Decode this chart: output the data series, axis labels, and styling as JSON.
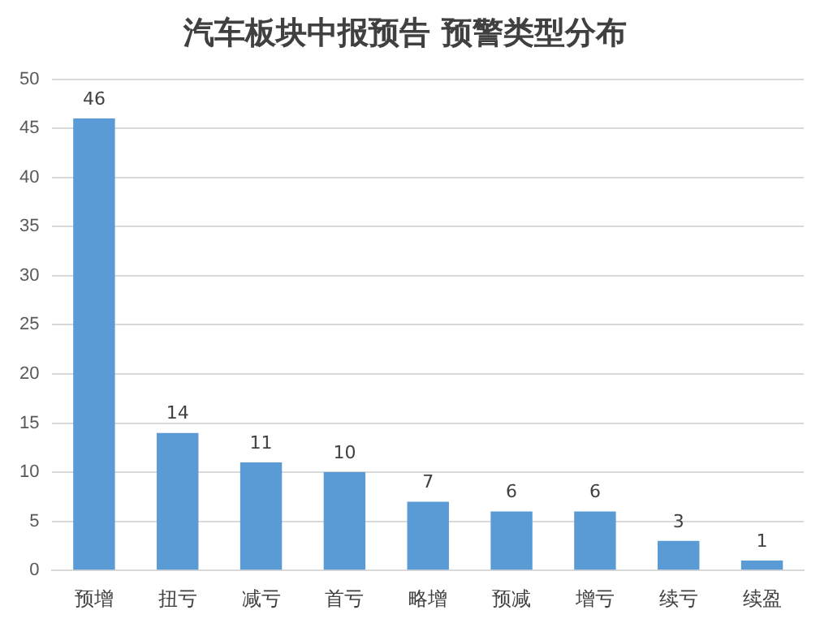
{
  "chart_data": {
    "type": "bar",
    "title": "汽车板块中报预告 预警类型分布",
    "categories": [
      "预增",
      "扭亏",
      "减亏",
      "首亏",
      "略增",
      "预减",
      "增亏",
      "续亏",
      "续盈"
    ],
    "values": [
      46,
      14,
      11,
      10,
      7,
      6,
      6,
      3,
      1
    ],
    "color": "#5b9bd5",
    "ylim": [
      0,
      50
    ],
    "yticks": [
      0,
      5,
      10,
      15,
      20,
      25,
      30,
      35,
      40,
      45,
      50
    ],
    "grid": "y",
    "data_labels": true
  }
}
